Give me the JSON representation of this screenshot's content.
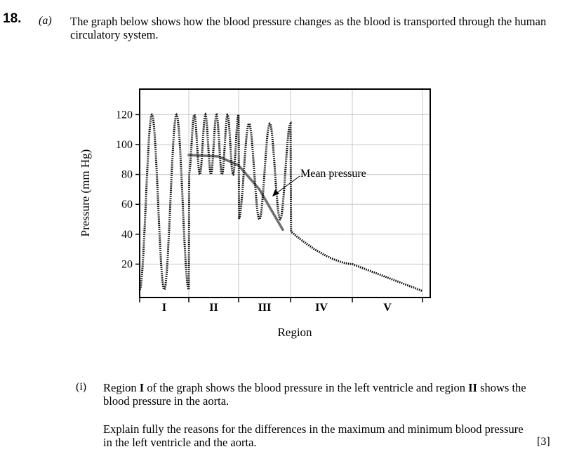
{
  "question": {
    "number": "18.",
    "part": "(a)",
    "intro": "The graph below shows how the blood pressure changes as the blood is transported through the human circulatory system."
  },
  "chart_data": {
    "type": "line",
    "title": "",
    "xlabel": "Region",
    "ylabel": "Pressure (mm Hg)",
    "ylim": [
      0,
      130
    ],
    "yticks": [
      20,
      40,
      60,
      80,
      100,
      120
    ],
    "regions": [
      "I",
      "II",
      "III",
      "IV",
      "V"
    ],
    "grid": true,
    "annotation": "Mean pressure",
    "series": [
      {
        "name": "Blood pressure",
        "style": "dotted",
        "segments": [
          {
            "region": "I",
            "min": 3,
            "max": 120,
            "cycles": 2
          },
          {
            "region": "II",
            "min": 80,
            "max": 120,
            "cycles": 4.5
          },
          {
            "region": "III",
            "min": 50,
            "max": 114,
            "cycles": 2.5
          },
          {
            "region": "IV",
            "from": 42,
            "to": 20
          },
          {
            "region": "V",
            "from": 20,
            "to": 2
          }
        ]
      },
      {
        "name": "Mean pressure",
        "style": "solid",
        "points": [
          [
            1.0,
            93
          ],
          [
            1.6,
            92
          ],
          [
            2.0,
            86
          ],
          [
            2.4,
            70
          ],
          [
            2.65,
            55
          ],
          [
            2.85,
            43
          ]
        ]
      }
    ]
  },
  "part_i": {
    "label": "(i)",
    "text_a": "Region ",
    "bold_a": "I",
    "text_b": " of the graph shows the blood pressure in the left ventricle and region ",
    "bold_b": "II",
    "text_c": " shows the blood pressure in the aorta.",
    "instruction": "Explain fully the reasons for the differences in the maximum and minimum blood pressure in the left ventricle and the aorta.",
    "marks": "[3]"
  }
}
